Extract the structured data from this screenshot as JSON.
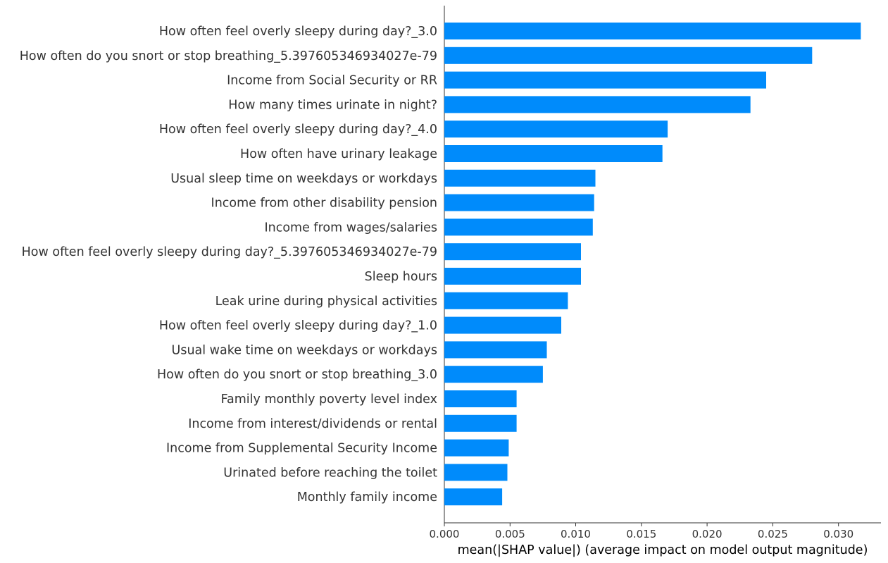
{
  "chart_data": {
    "type": "bar",
    "orientation": "horizontal",
    "title": "",
    "xlabel": "mean(|SHAP value|) (average impact on model output magnitude)",
    "ylabel": "",
    "xlim": [
      0,
      0.0335
    ],
    "xticks": [
      0.0,
      0.005,
      0.01,
      0.015,
      0.02,
      0.025,
      0.03
    ],
    "xtick_labels": [
      "0.000",
      "0.005",
      "0.010",
      "0.015",
      "0.020",
      "0.025",
      "0.030"
    ],
    "bar_color": "#008bfb",
    "grid": false,
    "categories": [
      "How often feel overly sleepy during day?_3.0",
      "How often do you snort or stop breathing_5.397605346934027e-79",
      "Income from Social Security or RR",
      "How many times urinate in night?",
      "How often feel overly sleepy during day?_4.0",
      "How often have urinary leakage",
      "Usual sleep time on weekdays or workdays",
      "Income from other disability pension",
      "Income from wages/salaries",
      "How often feel overly sleepy during day?_5.397605346934027e-79",
      "Sleep hours",
      "Leak urine during physical activities",
      "How often feel overly sleepy during day?_1.0",
      "Usual wake time on weekdays or workdays",
      "How often do you snort or stop breathing_3.0",
      "Family monthly poverty level index",
      "Income from interest/dividends or rental",
      "Income from Supplemental Security Income",
      "Urinated before reaching the toilet",
      "Monthly family income"
    ],
    "values": [
      0.0317,
      0.028,
      0.0245,
      0.0233,
      0.017,
      0.0166,
      0.0115,
      0.0114,
      0.0113,
      0.0104,
      0.0104,
      0.0094,
      0.0089,
      0.0078,
      0.0075,
      0.0055,
      0.0055,
      0.0049,
      0.0048,
      0.0044
    ]
  }
}
